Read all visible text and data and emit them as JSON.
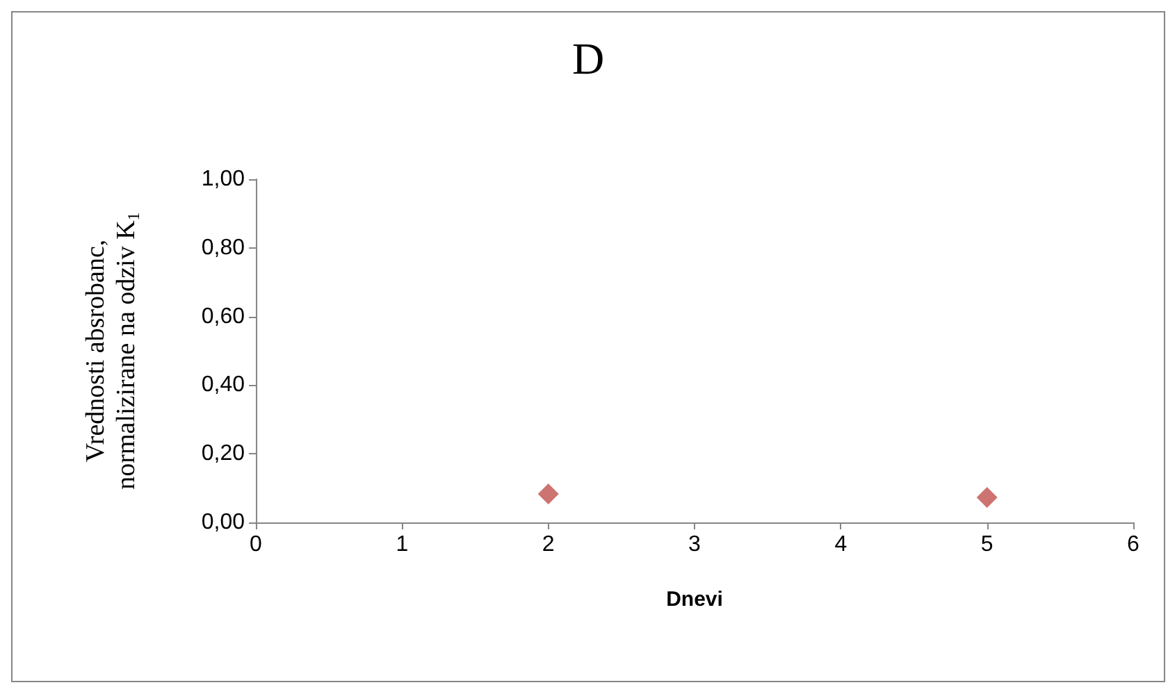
{
  "chart_data": {
    "type": "scatter",
    "title": "D",
    "xlabel": "Dnevi",
    "ylabel": "Vrednosti absrobanc,\nnormalizirane na odziv K$_{1}$",
    "x": [
      2,
      5
    ],
    "values": [
      0.083,
      0.073
    ],
    "color": "#c0504d",
    "marker": "diamond",
    "xlim": [
      0,
      6
    ],
    "xticks": [
      0,
      1,
      2,
      3,
      4,
      5,
      6
    ],
    "ylim": [
      0,
      1
    ],
    "yticks": [
      {
        "value": 0,
        "label": "0,00"
      },
      {
        "value": 0.2,
        "label": "0,20"
      },
      {
        "value": 0.4,
        "label": "0,40"
      },
      {
        "value": 0.6,
        "label": "0,60"
      },
      {
        "value": 0.8,
        "label": "0,80"
      },
      {
        "value": 1,
        "label": "1,00"
      }
    ],
    "grid": false
  }
}
